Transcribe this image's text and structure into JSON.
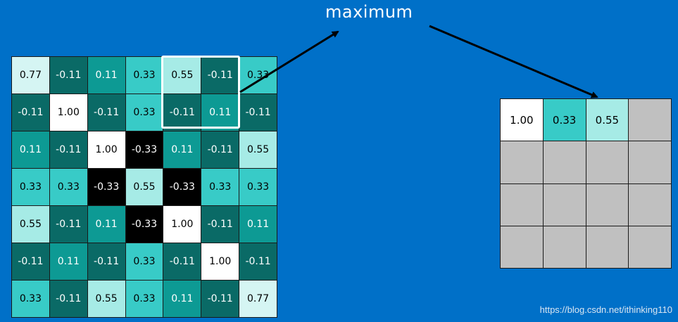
{
  "title": "maximum",
  "watermark": "https://blog.csdn.net/ithinking110",
  "colors": {
    "background": "#0070c8",
    "white": "#ffffff",
    "black": "#000000",
    "teal_dark": "#0a6a66",
    "teal_mid": "#0d9a94",
    "teal_bright": "#38cbc7",
    "teal_light": "#a6ebe6",
    "teal_pale": "#d5f5f3",
    "gray_empty": "#c0c0c0"
  },
  "left_grid": {
    "values": [
      [
        "0.77",
        "-0.11",
        "0.11",
        "0.33",
        "0.55",
        "-0.11",
        "0.33"
      ],
      [
        "-0.11",
        "1.00",
        "-0.11",
        "0.33",
        "-0.11",
        "0.11",
        "-0.11"
      ],
      [
        "0.11",
        "-0.11",
        "1.00",
        "-0.33",
        "0.11",
        "-0.11",
        "0.55"
      ],
      [
        "0.33",
        "0.33",
        "-0.33",
        "0.55",
        "-0.33",
        "0.33",
        "0.33"
      ],
      [
        "0.55",
        "-0.11",
        "0.11",
        "-0.33",
        "1.00",
        "-0.11",
        "0.11"
      ],
      [
        "-0.11",
        "0.11",
        "-0.11",
        "0.33",
        "-0.11",
        "1.00",
        "-0.11"
      ],
      [
        "0.33",
        "-0.11",
        "0.55",
        "0.33",
        "0.11",
        "-0.11",
        "0.77"
      ]
    ]
  },
  "right_grid": {
    "values": [
      [
        "1.00",
        "0.33",
        "0.55",
        ""
      ],
      [
        "",
        "",
        "",
        ""
      ],
      [
        "",
        "",
        "",
        ""
      ],
      [
        "",
        "",
        "",
        ""
      ]
    ]
  }
}
